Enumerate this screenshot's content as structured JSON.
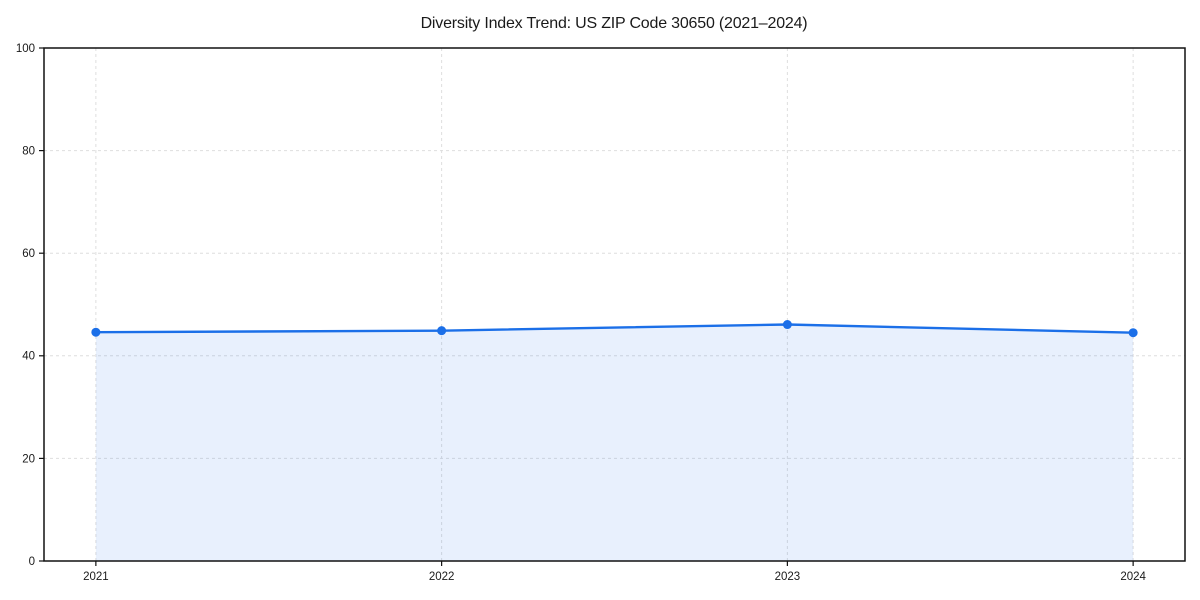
{
  "figure": {
    "background_color": "#ffffff",
    "spine_color": "#111111",
    "grid_color": "#dedede",
    "tick_label_color": "#1a1a1a"
  },
  "chart_data": {
    "type": "line",
    "title": "Diversity Index Trend: US ZIP Code 30650 (2021–2024)",
    "x": [
      2021,
      2022,
      2023,
      2024
    ],
    "xticklabels": [
      "2021",
      "2022",
      "2023",
      "2024"
    ],
    "series": [
      {
        "name": "Diversity Index",
        "values": [
          44.6,
          44.9,
          46.1,
          44.5
        ]
      }
    ],
    "xlabel": "",
    "ylabel": "",
    "xlim": [
      2020.85,
      2024.15
    ],
    "ylim": [
      0,
      100
    ],
    "yticks": [
      0,
      20,
      40,
      60,
      80,
      100
    ],
    "grid": true,
    "grid_style": "dashed",
    "legend_position": "none",
    "area_fill": true,
    "line_color": "#1b6fe8",
    "marker_color": "#1b6fe8",
    "fill_color": "rgba(27,111,232,0.10)"
  }
}
